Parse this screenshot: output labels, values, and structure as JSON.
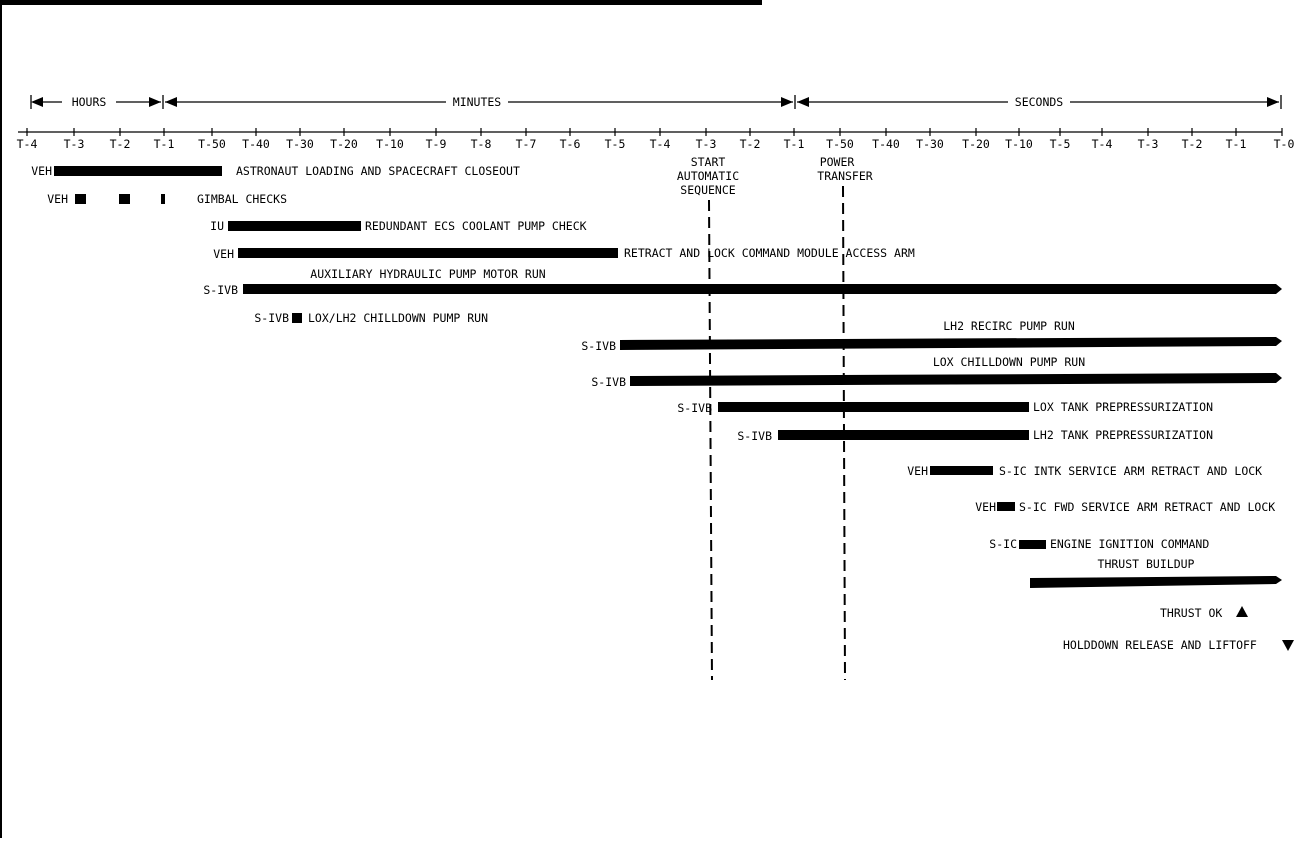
{
  "header_bands": {
    "hours": "HOURS",
    "minutes": "MINUTES",
    "seconds": "SECONDS"
  },
  "ticks": [
    "T-4",
    "T-3",
    "T-2",
    "T-1",
    "T-50",
    "T-40",
    "T-30",
    "T-20",
    "T-10",
    "T-9",
    "T-8",
    "T-7",
    "T-6",
    "T-5",
    "T-4",
    "T-3",
    "T-2",
    "T-1",
    "T-50",
    "T-40",
    "T-30",
    "T-20",
    "T-10",
    "T-5",
    "T-4",
    "T-3",
    "T-2",
    "T-1",
    "T-0"
  ],
  "markers": {
    "start_auto": [
      "START",
      "AUTOMATIC",
      "SEQUENCE"
    ],
    "power_transfer": [
      "POWER",
      "TRANSFER"
    ]
  },
  "events": [
    {
      "prefix": "VEH",
      "label": "ASTRONAUT LOADING AND SPACECRAFT CLOSEOUT"
    },
    {
      "prefix": "VEH",
      "label": "GIMBAL CHECKS"
    },
    {
      "prefix": "IU",
      "label": "REDUNDANT ECS COOLANT PUMP CHECK"
    },
    {
      "prefix": "VEH",
      "label": "RETRACT AND LOCK COMMAND MODULE ACCESS ARM"
    },
    {
      "prefix": "S-IVB",
      "label": "AUXILIARY HYDRAULIC PUMP MOTOR RUN"
    },
    {
      "prefix": "S-IVB",
      "label": "LOX/LH2 CHILLDOWN PUMP RUN"
    },
    {
      "prefix": "S-IVB",
      "label": "LH2 RECIRC PUMP RUN"
    },
    {
      "prefix": "S-IVB",
      "label": "LOX CHILLDOWN PUMP RUN"
    },
    {
      "prefix": "S-IVB",
      "label": "LOX TANK PREPRESSURIZATION"
    },
    {
      "prefix": "S-IVB",
      "label": "LH2 TANK PREPRESSURIZATION"
    },
    {
      "prefix": "VEH",
      "label": "S-IC INTK SERVICE ARM RETRACT AND LOCK"
    },
    {
      "prefix": "VEH",
      "label": "S-IC FWD SERVICE ARM RETRACT AND LOCK"
    },
    {
      "prefix": "S-IC",
      "label": "ENGINE IGNITION COMMAND"
    },
    {
      "prefix": "",
      "label": "THRUST BUILDUP"
    },
    {
      "prefix": "",
      "label": "THRUST OK"
    },
    {
      "prefix": "",
      "label": "HOLDDOWN RELEASE AND LIFTOFF"
    }
  ],
  "colors": {
    "ink": "#000000",
    "paper": "#ffffff"
  }
}
